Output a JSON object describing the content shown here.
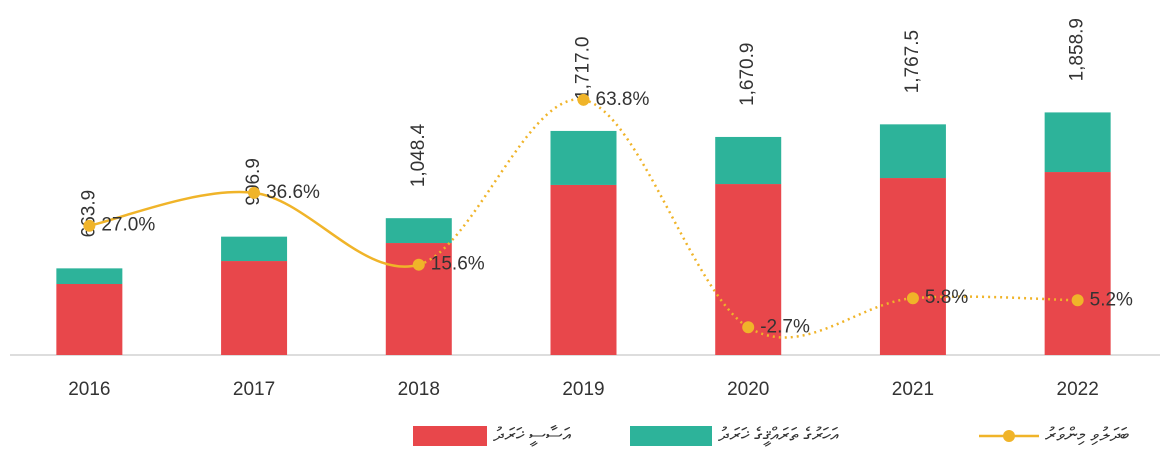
{
  "chart_data": {
    "type": "bar",
    "categories": [
      "2016",
      "2017",
      "2018",
      "2019",
      "2020",
      "2021",
      "2022"
    ],
    "ylim": [
      0,
      2000
    ],
    "y2lim": [
      -10.8,
      65.5
    ],
    "series": [
      {
        "name": "އަސާސީ ޚަރަދު",
        "color": "#e8474b",
        "values": [
          544,
          720,
          858,
          1303,
          1310,
          1356,
          1402
        ]
      },
      {
        "name": "އަހަރުގެ ތަރައްޤީގެ ޚަރަދު",
        "color": "#2db39a",
        "values": [
          119.9,
          186.9,
          190.4,
          414.0,
          360.9,
          411.5,
          456.9
        ]
      },
      {
        "name": "ބަދަލުވި މިންވަރު",
        "color": "#f0b429",
        "type": "line",
        "axis": "y2",
        "values": [
          27.0,
          36.6,
          15.6,
          63.8,
          -2.7,
          5.8,
          5.2
        ],
        "value_labels": [
          "27.0%",
          "36.6%",
          "15.6%",
          "63.8%",
          "-2.7%",
          "5.8%",
          "5.2%"
        ]
      }
    ],
    "totals": {
      "values": [
        663.9,
        906.9,
        1048.4,
        1717.0,
        1670.9,
        1767.5,
        1858.9
      ],
      "value_labels": [
        "663.9",
        "906.9",
        "1,048.4",
        "1,717.0",
        "1,670.9",
        "1,767.5",
        "1,858.9"
      ]
    }
  }
}
